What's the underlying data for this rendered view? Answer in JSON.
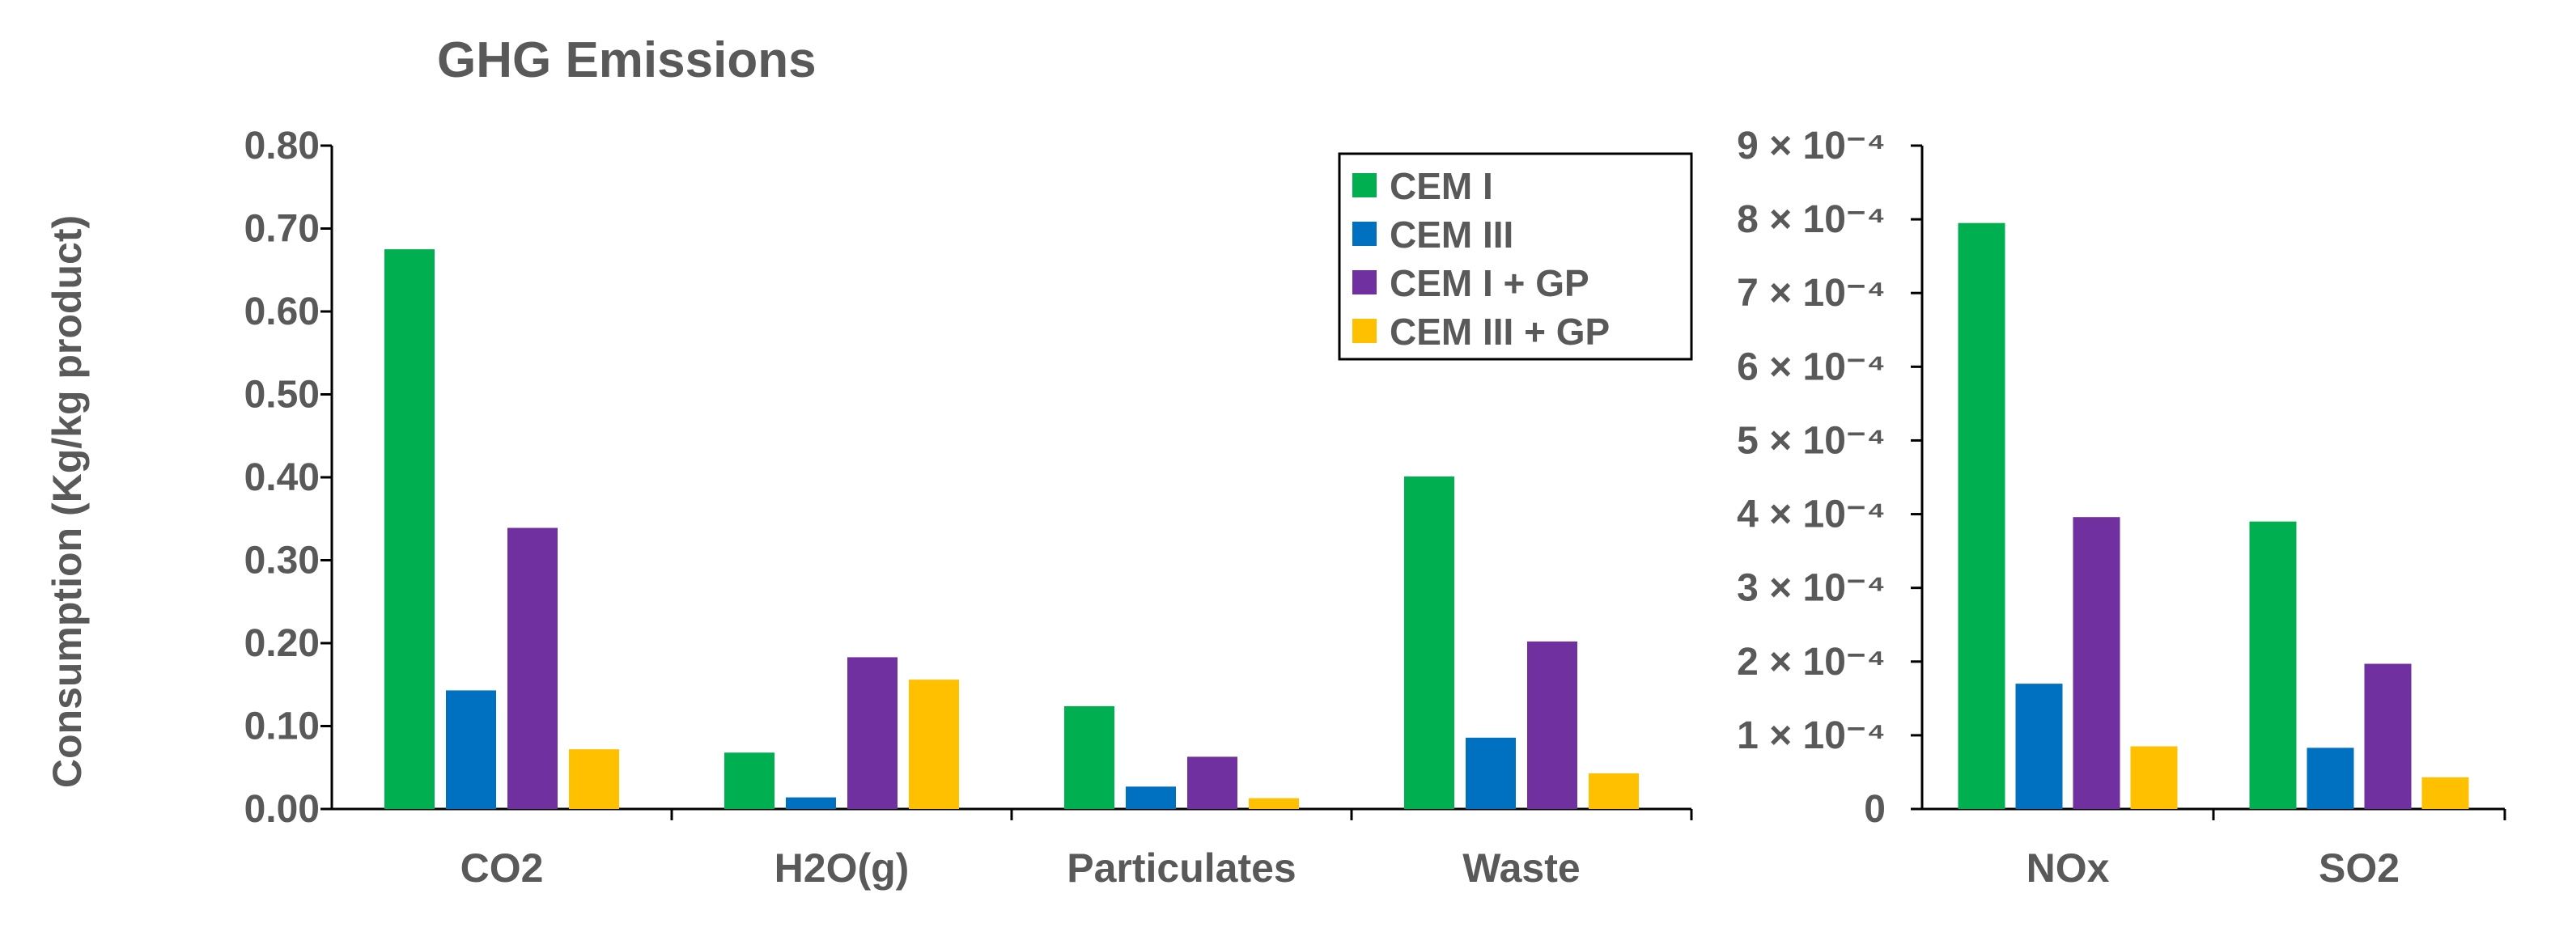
{
  "chart_data": [
    {
      "type": "bar",
      "title": "GHG Emissions",
      "ylabel": "Consumption (Kg/kg product)",
      "xlabel": "",
      "categories": [
        "CO2",
        "H2O(g)",
        "Particulates",
        "Waste"
      ],
      "ylim": [
        0,
        0.8
      ],
      "yticks": [
        "0.00",
        "0.10",
        "0.20",
        "0.30",
        "0.40",
        "0.50",
        "0.60",
        "0.70",
        "0.80"
      ],
      "series": [
        {
          "name": "CEM I",
          "color": "#00b050",
          "values": [
            0.675,
            0.068,
            0.124,
            0.401
          ]
        },
        {
          "name": "CEM III",
          "color": "#0070c0",
          "values": [
            0.143,
            0.014,
            0.027,
            0.086
          ]
        },
        {
          "name": "CEM I + GP",
          "color": "#7030a0",
          "values": [
            0.339,
            0.183,
            0.063,
            0.202
          ]
        },
        {
          "name": "CEM III + GP",
          "color": "#ffc000",
          "values": [
            0.072,
            0.156,
            0.013,
            0.043
          ]
        }
      ],
      "legend": "top-right"
    },
    {
      "type": "bar",
      "title": "",
      "ylabel": "",
      "xlabel": "",
      "categories": [
        "NOx",
        "SO2"
      ],
      "ylim": [
        0,
        0.0009
      ],
      "yticks": [
        "0",
        "1 × 10⁻⁴",
        "2 × 10⁻⁴",
        "3 × 10⁻⁴",
        "4 × 10⁻⁴",
        "5 × 10⁻⁴",
        "6 × 10⁻⁴",
        "7 × 10⁻⁴",
        "8 × 10⁻⁴",
        "9 × 10⁻⁴"
      ],
      "series": [
        {
          "name": "CEM I",
          "color": "#00b050",
          "values": [
            0.000795,
            0.00039
          ]
        },
        {
          "name": "CEM III",
          "color": "#0070c0",
          "values": [
            0.00017,
            8.3e-05
          ]
        },
        {
          "name": "CEM I + GP",
          "color": "#7030a0",
          "values": [
            0.000396,
            0.000197
          ]
        },
        {
          "name": "CEM III + GP",
          "color": "#ffc000",
          "values": [
            8.5e-05,
            4.3e-05
          ]
        }
      ]
    }
  ]
}
